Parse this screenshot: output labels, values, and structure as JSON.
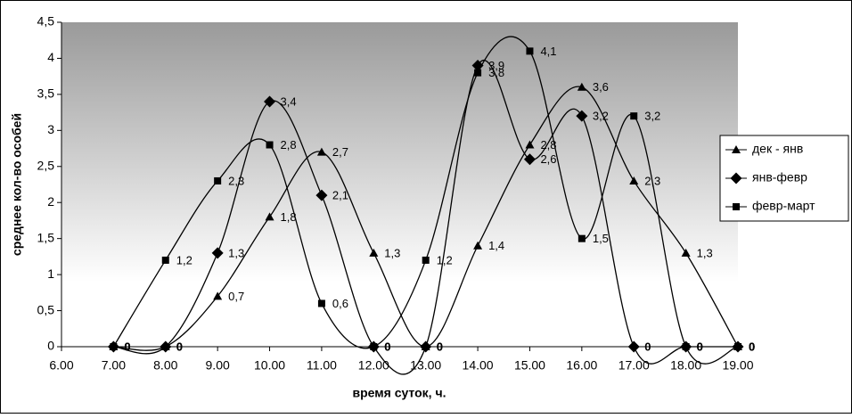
{
  "chart_data": {
    "type": "line",
    "x_label": "время суток, ч.",
    "y_label": "среднее кол-во особей",
    "x": [
      7,
      8,
      9,
      10,
      11,
      12,
      13,
      14,
      15,
      16,
      17,
      18,
      19
    ],
    "series": [
      {
        "name": "дек - янв",
        "color": "#000000",
        "marker": "triangle",
        "values": [
          0,
          0,
          0.7,
          1.8,
          2.7,
          1.3,
          0,
          1.4,
          2.8,
          3.6,
          2.3,
          1.3,
          0
        ],
        "value_labels": [
          "0",
          "0",
          "0,7",
          "1,8",
          "2,7",
          "1,3",
          "0",
          "1,4",
          "2,8",
          "3,6",
          "2,3",
          "1,3",
          "0"
        ]
      },
      {
        "name": "янв-февр",
        "color": "#000000",
        "marker": "diamond",
        "values": [
          0,
          0,
          1.3,
          3.4,
          2.1,
          0,
          0,
          3.9,
          2.6,
          3.2,
          0,
          0,
          0
        ],
        "value_labels": [
          "0",
          "0",
          "1,3",
          "3,4",
          "2,1",
          "0",
          "0",
          "3,9",
          "2,6",
          "3,2",
          "0",
          "0",
          "0"
        ]
      },
      {
        "name": "февр-март",
        "color": "#000000",
        "marker": "square",
        "values": [
          0,
          1.2,
          2.3,
          2.8,
          0.6,
          0,
          1.2,
          3.8,
          4.1,
          1.5,
          3.2,
          0,
          0
        ],
        "value_labels": [
          "0",
          "1,2",
          "2,3",
          "2,8",
          "0,6",
          "0",
          "1,2",
          "3,8",
          "4,1",
          "1,5",
          "3,2",
          "0",
          "0"
        ]
      }
    ],
    "xlim": [
      6,
      19
    ],
    "xticks": [
      {
        "value": 6,
        "label": "6.00"
      },
      {
        "value": 7,
        "label": "7.00"
      },
      {
        "value": 8,
        "label": "8.00"
      },
      {
        "value": 9,
        "label": "9.00"
      },
      {
        "value": 10,
        "label": "10.00"
      },
      {
        "value": 11,
        "label": "11.00"
      },
      {
        "value": 12,
        "label": "12.00"
      },
      {
        "value": 13,
        "label": "13.00"
      },
      {
        "value": 14,
        "label": "14.00"
      },
      {
        "value": 15,
        "label": "15.00"
      },
      {
        "value": 16,
        "label": "16.00"
      },
      {
        "value": 17,
        "label": "17.00"
      },
      {
        "value": 18,
        "label": "18.00"
      },
      {
        "value": 19,
        "label": "19.00"
      }
    ],
    "ylim": [
      0,
      4.5
    ],
    "yticks": [
      0,
      {
        "value": 0.5,
        "label": "0,5"
      },
      1,
      {
        "value": 1.5,
        "label": "1,5"
      },
      2,
      {
        "value": 2.5,
        "label": "2,5"
      },
      3,
      {
        "value": 3.5,
        "label": "3,5"
      },
      4,
      {
        "value": 4.5,
        "label": "4,5"
      }
    ],
    "smooth": true,
    "legend": "right"
  }
}
